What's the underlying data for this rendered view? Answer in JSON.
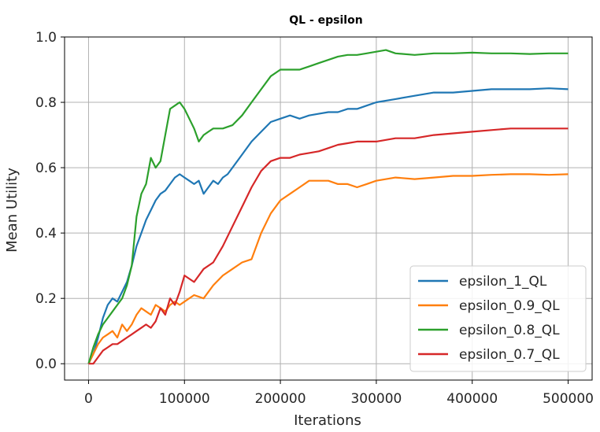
{
  "chart_data": {
    "type": "line",
    "title": "QL - epsilon",
    "xlabel": "Iterations",
    "ylabel": "Mean Utility",
    "xlim": [
      -25000,
      525000
    ],
    "ylim": [
      -0.05,
      1.0
    ],
    "xticks": [
      0,
      100000,
      200000,
      300000,
      400000,
      500000
    ],
    "xtick_labels": [
      "0",
      "100000",
      "200000",
      "300000",
      "400000",
      "500000"
    ],
    "yticks": [
      0.0,
      0.2,
      0.4,
      0.6,
      0.8,
      1.0
    ],
    "ytick_labels": [
      "0.0",
      "0.2",
      "0.4",
      "0.6",
      "0.8",
      "1.0"
    ],
    "grid": true,
    "legend_position": "bottom-right",
    "series": [
      {
        "name": "epsilon_1_QL",
        "color": "#1f77b4",
        "x": [
          0,
          5000,
          10000,
          15000,
          20000,
          25000,
          30000,
          35000,
          40000,
          45000,
          50000,
          55000,
          60000,
          65000,
          70000,
          75000,
          80000,
          85000,
          90000,
          95000,
          100000,
          105000,
          110000,
          115000,
          120000,
          125000,
          130000,
          135000,
          140000,
          145000,
          150000,
          160000,
          170000,
          180000,
          190000,
          200000,
          210000,
          220000,
          230000,
          240000,
          250000,
          260000,
          270000,
          280000,
          290000,
          300000,
          320000,
          340000,
          360000,
          380000,
          400000,
          420000,
          440000,
          460000,
          480000,
          500000
        ],
        "y": [
          0.0,
          0.03,
          0.08,
          0.14,
          0.18,
          0.2,
          0.19,
          0.22,
          0.25,
          0.3,
          0.36,
          0.4,
          0.44,
          0.47,
          0.5,
          0.52,
          0.53,
          0.55,
          0.57,
          0.58,
          0.57,
          0.56,
          0.55,
          0.56,
          0.52,
          0.54,
          0.56,
          0.55,
          0.57,
          0.58,
          0.6,
          0.64,
          0.68,
          0.71,
          0.74,
          0.75,
          0.76,
          0.75,
          0.76,
          0.765,
          0.77,
          0.77,
          0.78,
          0.78,
          0.79,
          0.8,
          0.81,
          0.82,
          0.83,
          0.83,
          0.835,
          0.84,
          0.84,
          0.84,
          0.843,
          0.84
        ]
      },
      {
        "name": "epsilon_0.9_QL",
        "color": "#ff7f0e",
        "x": [
          0,
          5000,
          10000,
          15000,
          20000,
          25000,
          30000,
          35000,
          40000,
          45000,
          50000,
          55000,
          60000,
          65000,
          70000,
          75000,
          80000,
          85000,
          90000,
          95000,
          100000,
          110000,
          120000,
          130000,
          140000,
          150000,
          160000,
          170000,
          180000,
          190000,
          200000,
          210000,
          220000,
          230000,
          240000,
          250000,
          260000,
          270000,
          280000,
          290000,
          300000,
          320000,
          340000,
          360000,
          380000,
          400000,
          420000,
          440000,
          460000,
          480000,
          500000
        ],
        "y": [
          0.0,
          0.03,
          0.06,
          0.08,
          0.09,
          0.1,
          0.08,
          0.12,
          0.1,
          0.12,
          0.15,
          0.17,
          0.16,
          0.15,
          0.18,
          0.17,
          0.16,
          0.18,
          0.19,
          0.18,
          0.19,
          0.21,
          0.2,
          0.24,
          0.27,
          0.29,
          0.31,
          0.32,
          0.4,
          0.46,
          0.5,
          0.52,
          0.54,
          0.56,
          0.56,
          0.56,
          0.55,
          0.55,
          0.54,
          0.55,
          0.56,
          0.57,
          0.565,
          0.57,
          0.575,
          0.575,
          0.578,
          0.58,
          0.58,
          0.578,
          0.58
        ]
      },
      {
        "name": "epsilon_0.8_QL",
        "color": "#2ca02c",
        "x": [
          0,
          5000,
          10000,
          15000,
          20000,
          25000,
          30000,
          35000,
          40000,
          45000,
          50000,
          55000,
          60000,
          65000,
          70000,
          75000,
          80000,
          85000,
          90000,
          95000,
          100000,
          105000,
          110000,
          115000,
          120000,
          125000,
          130000,
          140000,
          150000,
          160000,
          170000,
          180000,
          190000,
          200000,
          210000,
          220000,
          230000,
          240000,
          250000,
          260000,
          270000,
          280000,
          290000,
          300000,
          310000,
          320000,
          340000,
          360000,
          380000,
          400000,
          420000,
          440000,
          460000,
          480000,
          500000
        ],
        "y": [
          0.0,
          0.05,
          0.09,
          0.12,
          0.14,
          0.16,
          0.18,
          0.2,
          0.24,
          0.3,
          0.45,
          0.52,
          0.55,
          0.63,
          0.6,
          0.62,
          0.7,
          0.78,
          0.79,
          0.8,
          0.78,
          0.75,
          0.72,
          0.68,
          0.7,
          0.71,
          0.72,
          0.72,
          0.73,
          0.76,
          0.8,
          0.84,
          0.88,
          0.9,
          0.9,
          0.9,
          0.91,
          0.92,
          0.93,
          0.94,
          0.945,
          0.945,
          0.95,
          0.955,
          0.96,
          0.95,
          0.945,
          0.95,
          0.95,
          0.952,
          0.95,
          0.95,
          0.948,
          0.95,
          0.95
        ]
      },
      {
        "name": "epsilon_0.7_QL",
        "color": "#d62728",
        "x": [
          0,
          5000,
          10000,
          15000,
          20000,
          25000,
          30000,
          35000,
          40000,
          45000,
          50000,
          55000,
          60000,
          65000,
          70000,
          75000,
          80000,
          85000,
          90000,
          95000,
          100000,
          110000,
          120000,
          130000,
          140000,
          150000,
          160000,
          170000,
          180000,
          190000,
          200000,
          210000,
          220000,
          230000,
          240000,
          250000,
          260000,
          270000,
          280000,
          290000,
          300000,
          320000,
          340000,
          360000,
          380000,
          400000,
          420000,
          440000,
          460000,
          480000,
          500000
        ],
        "y": [
          0.0,
          0.0,
          0.02,
          0.04,
          0.05,
          0.06,
          0.06,
          0.07,
          0.08,
          0.09,
          0.1,
          0.11,
          0.12,
          0.11,
          0.13,
          0.17,
          0.15,
          0.2,
          0.18,
          0.22,
          0.27,
          0.25,
          0.29,
          0.31,
          0.36,
          0.42,
          0.48,
          0.54,
          0.59,
          0.62,
          0.63,
          0.63,
          0.64,
          0.645,
          0.65,
          0.66,
          0.67,
          0.675,
          0.68,
          0.68,
          0.68,
          0.69,
          0.69,
          0.7,
          0.705,
          0.71,
          0.715,
          0.72,
          0.72,
          0.72,
          0.72
        ]
      }
    ]
  }
}
